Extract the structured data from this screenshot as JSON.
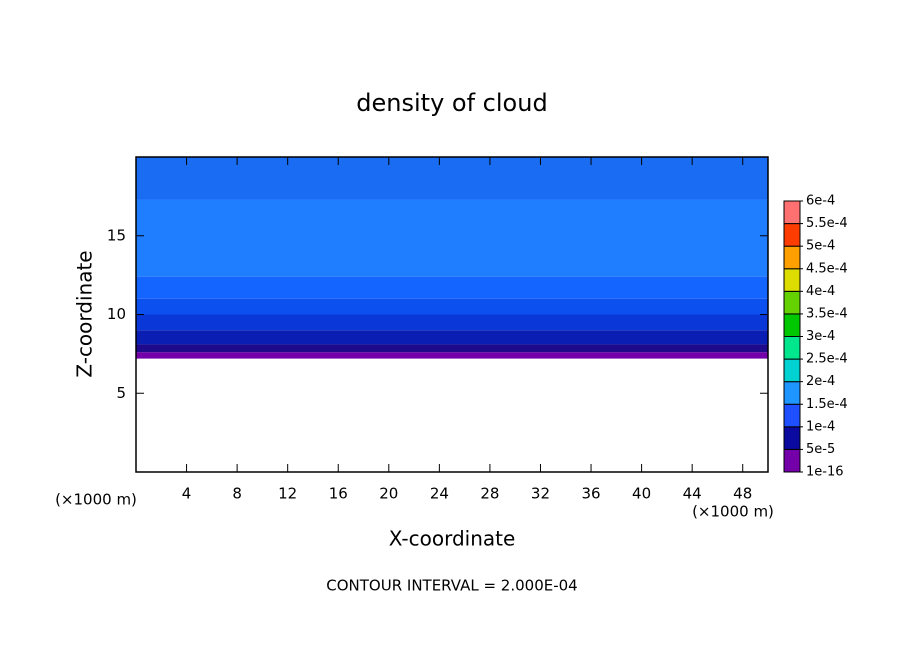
{
  "chart_data": {
    "type": "contour",
    "title": "density of cloud",
    "x_label": "X-coordinate",
    "y_label": "Z-coordinate",
    "x_units": "(×1000 m)",
    "y_units": "(×1000 m)",
    "footer": "CONTOUR INTERVAL = 2.000E-04",
    "xlim": [
      0,
      50
    ],
    "ylim": [
      0,
      20
    ],
    "xticks": [
      4,
      8,
      12,
      16,
      20,
      24,
      28,
      32,
      36,
      40,
      44,
      48
    ],
    "yticks": [
      5,
      10,
      15
    ],
    "layers": [
      {
        "zlim": [
          17.3,
          20
        ],
        "color": "#1a6cf2"
      },
      {
        "zlim": [
          12.4,
          17.3
        ],
        "color": "#1f7dff"
      },
      {
        "zlim": [
          11,
          12.4
        ],
        "color": "#1464ff"
      },
      {
        "zlim": [
          10,
          11
        ],
        "color": "#0c50f0"
      },
      {
        "zlim": [
          9,
          10
        ],
        "color": "#0a38d8"
      },
      {
        "zlim": [
          8.1,
          9
        ],
        "color": "#0a1eb4"
      },
      {
        "zlim": [
          7.6,
          8.1
        ],
        "color": "#200a8c"
      },
      {
        "zlim": [
          7.2,
          7.6
        ],
        "color": "#7300a8"
      }
    ],
    "colorbar": {
      "levels": [
        {
          "value": 1e-16,
          "label": "1e-16"
        },
        {
          "value": 5e-05,
          "label": "5e-5"
        },
        {
          "value": 0.0001,
          "label": "1e-4"
        },
        {
          "value": 0.00015,
          "label": "1.5e-4"
        },
        {
          "value": 0.0002,
          "label": "2e-4"
        },
        {
          "value": 0.00025,
          "label": "2.5e-4"
        },
        {
          "value": 0.0003,
          "label": "3e-4"
        },
        {
          "value": 0.00035,
          "label": "3.5e-4"
        },
        {
          "value": 0.0004,
          "label": "4e-4"
        },
        {
          "value": 0.00045,
          "label": "4.5e-4"
        },
        {
          "value": 0.0005,
          "label": "5e-4"
        },
        {
          "value": 0.00055,
          "label": "5.5e-4"
        },
        {
          "value": 0.0006,
          "label": "6e-4"
        }
      ],
      "colors": [
        "#7300a8",
        "#0a0aa0",
        "#1e50ff",
        "#1e96ff",
        "#00d2d2",
        "#00e68c",
        "#00c800",
        "#64d200",
        "#dcdc00",
        "#ffa000",
        "#ff3c00",
        "#ff7070"
      ]
    }
  }
}
